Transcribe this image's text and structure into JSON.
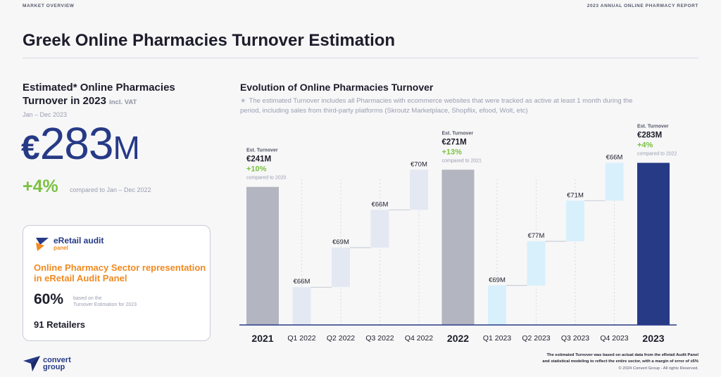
{
  "header": {
    "section": "MARKET OVERVIEW",
    "report": "2023 ANNUAL ONLINE PHARMACY REPORT",
    "title": "Greek Online Pharmacies Turnover Estimation"
  },
  "summary": {
    "heading": "Estimated* Online Pharmacies Turnover in 2023",
    "heading_suffix": "incl. VAT",
    "period": "Jan – Dec 2023",
    "currency": "€",
    "value": "283",
    "unit": "M",
    "growth": "+4%",
    "growth_note": "compared to Jan – Dec 2022"
  },
  "panel": {
    "logo_text": "eRetail audit",
    "logo_sub": "panel",
    "headline": "Online Pharmacy Sector representation in eRetail Audit Panel",
    "share": "60%",
    "share_note_1": "based on the",
    "share_note_2": "Turnover Estimation for 2023",
    "retailers": "91 Retailers"
  },
  "brand": {
    "line1": "convert",
    "line2": "group"
  },
  "chart_section": {
    "title": "Evolution of Online Pharmacies Turnover",
    "note": "The estimated Turnover includes all Pharmacies with ecommerce websites that were tracked as active at least 1 month during the period, including sales from third-party platforms (Skroutz Marketplace, Shopflix, efood, Wolt, etc)"
  },
  "footer": {
    "note_line1": "The estimated Turnover was based on actual data from the eRetail Audit Panel",
    "note_line2": "and statistical modeling to reflect the entire sector, with a margin of error of ±5%",
    "copyright": "© 2024 Convert Group - All rights Reserved."
  },
  "colors": {
    "navy": "#263a86",
    "total_gray": "#b3b5c0",
    "q2022": "#e4e8f2",
    "q2023": "#d8f0fb",
    "green": "#7cc242",
    "orange": "#f18a21"
  },
  "chart_data": {
    "type": "bar",
    "subtype": "waterfall",
    "unit": "€M",
    "categories": [
      "2021",
      "Q1 2022",
      "Q2 2022",
      "Q3 2022",
      "Q4 2022",
      "2022",
      "Q1 2023",
      "Q2 2023",
      "Q3 2023",
      "Q4 2023",
      "2023"
    ],
    "bars": [
      {
        "category": "2021",
        "kind": "total",
        "value": 241,
        "label": "€241M",
        "header": "Est. Turnover",
        "growth": "+10%",
        "compared": "compared to 2020",
        "color": "#b3b5c0"
      },
      {
        "category": "Q1 2022",
        "kind": "quarter",
        "value": 66,
        "label": "€66M",
        "color": "#e4e8f2"
      },
      {
        "category": "Q2 2022",
        "kind": "quarter",
        "value": 69,
        "label": "€69M",
        "color": "#e4e8f2"
      },
      {
        "category": "Q3 2022",
        "kind": "quarter",
        "value": 66,
        "label": "€66M",
        "color": "#e4e8f2"
      },
      {
        "category": "Q4 2022",
        "kind": "quarter",
        "value": 70,
        "label": "€70M",
        "color": "#e4e8f2"
      },
      {
        "category": "2022",
        "kind": "total",
        "value": 271,
        "label": "€271M",
        "header": "Est. Turnover",
        "growth": "+13%",
        "compared": "compared to 2021",
        "color": "#b3b5c0"
      },
      {
        "category": "Q1 2023",
        "kind": "quarter",
        "value": 69,
        "label": "€69M",
        "color": "#d8f0fb"
      },
      {
        "category": "Q2 2023",
        "kind": "quarter",
        "value": 77,
        "label": "€77M",
        "color": "#d8f0fb"
      },
      {
        "category": "Q3 2023",
        "kind": "quarter",
        "value": 71,
        "label": "€71M",
        "color": "#d8f0fb"
      },
      {
        "category": "Q4 2023",
        "kind": "quarter",
        "value": 66,
        "label": "€66M",
        "color": "#d8f0fb"
      },
      {
        "category": "2023",
        "kind": "total",
        "value": 283,
        "label": "€283M",
        "header": "Est. Turnover",
        "growth": "+4%",
        "compared": "compared to 2022",
        "color": "#263a86"
      }
    ]
  }
}
